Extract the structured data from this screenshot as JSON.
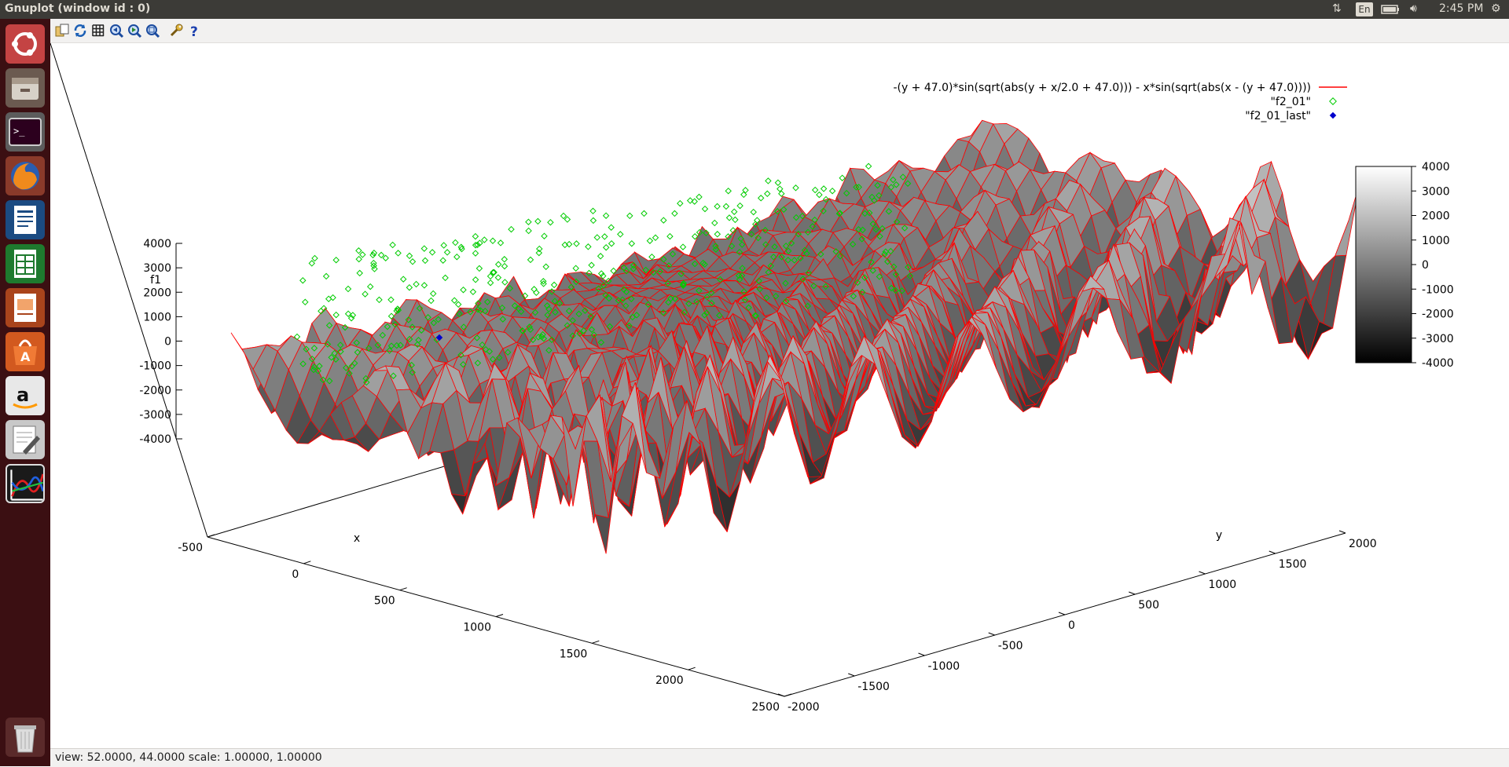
{
  "window": {
    "title": "Gnuplot (window id : 0)"
  },
  "panel": {
    "keyboard": "En",
    "clock": "2:45 PM"
  },
  "launcher": {
    "items": [
      {
        "name": "ubuntu-dash-icon"
      },
      {
        "name": "files-icon"
      },
      {
        "name": "terminal-icon"
      },
      {
        "name": "firefox-icon"
      },
      {
        "name": "writer-icon"
      },
      {
        "name": "calc-icon"
      },
      {
        "name": "impress-icon"
      },
      {
        "name": "software-center-icon"
      },
      {
        "name": "amazon-icon"
      },
      {
        "name": "text-editor-icon"
      },
      {
        "name": "gnuplot-icon"
      },
      {
        "name": "trash-icon"
      }
    ]
  },
  "toolbar": {
    "icons": [
      "copy-clipboard-icon",
      "replot-icon",
      "grid-icon",
      "zoom-previous-icon",
      "zoom-next-icon",
      "unzoom-icon",
      "options-icon",
      "help-icon"
    ]
  },
  "chart_data": {
    "type": "surface-3d",
    "legend": {
      "placement": "top-right",
      "entries": [
        {
          "label": "-(y + 47.0)*sin(sqrt(abs(y + x/2.0 + 47.0))) - x*sin(sqrt(abs(x - (y + 47.0))))",
          "style": "line",
          "color": "#ff0000"
        },
        {
          "label": "\"f2_01\"",
          "style": "points",
          "color": "#00cc00"
        },
        {
          "label": "\"f2_01_last\"",
          "style": "points",
          "color": "#0000cc"
        }
      ]
    },
    "zlabel": "f1",
    "xlabel": "x",
    "ylabel": "y",
    "z_ticks": [
      "4000",
      "3000",
      "2000",
      "1000",
      "0",
      "-1000",
      "-2000",
      "-3000",
      "-4000"
    ],
    "x_ticks": [
      "-500",
      "0",
      "500",
      "1000",
      "1500",
      "2000",
      "2500"
    ],
    "y_ticks": [
      "-2000",
      "-1500",
      "-1000",
      "-500",
      "0",
      "500",
      "1000",
      "1500",
      "2000"
    ],
    "colorbox_ticks": [
      "4000",
      "3000",
      "2000",
      "1000",
      "0",
      "-1000",
      "-2000",
      "-3000",
      "-4000"
    ],
    "zlim": [
      -4000,
      4000
    ],
    "xlim": [
      -500,
      2500
    ],
    "ylim": [
      -2000,
      2000
    ],
    "colorbox": {
      "min": -4000,
      "max": 4000,
      "palette": "gray"
    }
  },
  "status": {
    "text": "view: 52.0000, 44.0000  scale: 1.00000, 1.00000"
  },
  "colors": {
    "surface": "#ff0000",
    "points": "#00cc00",
    "last_point": "#0000cc"
  }
}
